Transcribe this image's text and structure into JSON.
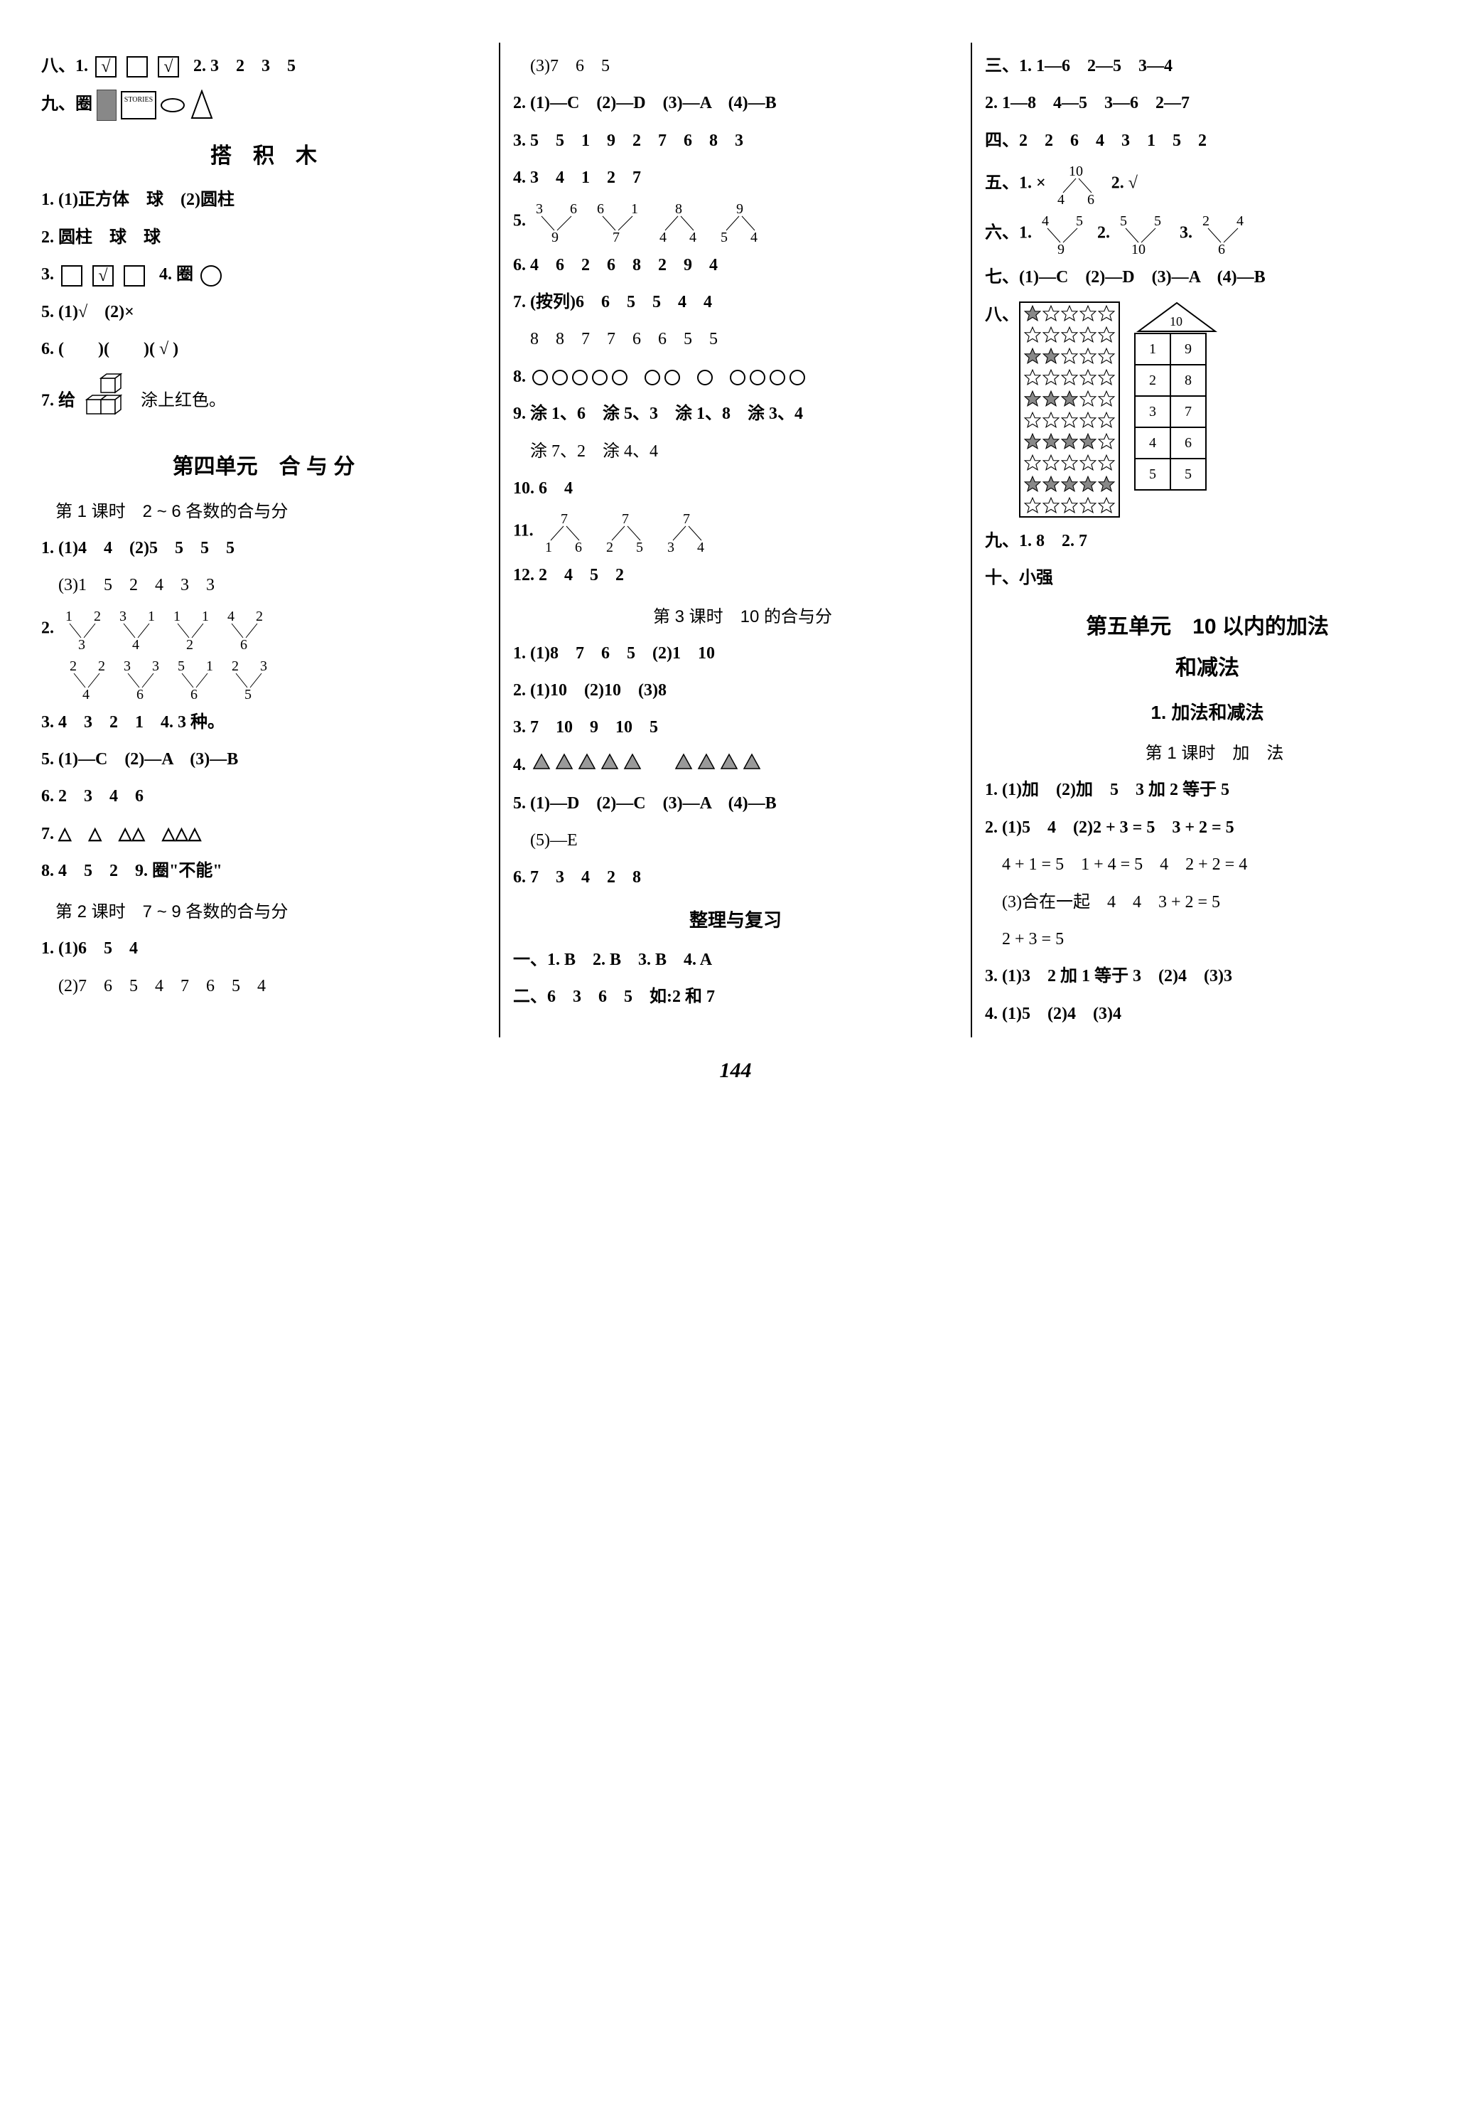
{
  "page_number": "144",
  "col1": {
    "l1_prefix": "八、1.",
    "l1_check": "√",
    "l1_suffix": "2. 3　2　3　5",
    "l2_prefix": "九、圈",
    "book_label": "STORIES",
    "unit_blocks": "搭　积　木",
    "l3": "1. (1)正方体　球　(2)圆柱",
    "l4": "2. 圆柱　球　球",
    "l5_prefix": "3.",
    "l5_mid": "4. 圈",
    "l6": "5. (1)√　(2)×",
    "l7": "6. (　　)(　　)( √ )",
    "l8_prefix": "7. 给",
    "l8_suffix": "涂上红色。",
    "unit4": "第四单元　合 与 分",
    "lesson41": "第 1 课时　2 ~ 6 各数的合与分",
    "l9": "1. (1)4　4　(2)5　5　5　5",
    "l10": "　(3)1　5　2　4　3　3",
    "l11_prefix": "2.",
    "v1": {
      "tl": "1",
      "tr": "2",
      "b": "3"
    },
    "v2": {
      "tl": "3",
      "tr": "1",
      "b": "4"
    },
    "v3": {
      "tl": "1",
      "tr": "1",
      "b": "2"
    },
    "v4": {
      "tl": "4",
      "tr": "2",
      "b": "6"
    },
    "v5": {
      "tl": "2",
      "tr": "2",
      "b": "4"
    },
    "v6": {
      "tl": "3",
      "tr": "3",
      "b": "6"
    },
    "v7": {
      "tl": "5",
      "tr": "1",
      "b": "6"
    },
    "v8": {
      "tl": "2",
      "tr": "3",
      "b": "5"
    },
    "l12": "3. 4　3　2　1　4. 3 种。",
    "l13": "5. (1)—C　(2)—A　(3)—B",
    "l14": "6. 2　3　4　6",
    "l15": "7. △　△　△△　△△△",
    "l16": "8. 4　5　2　9. 圈\"不能\"",
    "lesson42": "第 2 课时　7 ~ 9 各数的合与分",
    "l17": "1. (1)6　5　4",
    "l18": "　(2)7　6　5　4　7　6　5　4"
  },
  "col2": {
    "l1": "　(3)7　6　5",
    "l2": "2. (1)—C　(2)—D　(3)—A　(4)—B",
    "l3": "3. 5　5　1　9　2　7　6　8　3",
    "l4": "4. 3　4　1　2　7",
    "l5_prefix": "5.",
    "va": {
      "t": "3",
      "bl": "",
      "br": "9",
      "type": "down",
      "tl": "3",
      "tr": "6"
    },
    "vb": {
      "t": "6",
      "bl": "",
      "br": "7",
      "tl": "6",
      "tr": "1"
    },
    "vc": {
      "t": "8",
      "bl": "4",
      "br": "4",
      "tl": "",
      "tr": "8"
    },
    "vd": {
      "t": "9",
      "bl": "5",
      "br": "4",
      "tl": "",
      "tr": "9"
    },
    "d1": {
      "tl": "3",
      "tr": "6",
      "b": "9"
    },
    "d2": {
      "tl": "6",
      "tr": "1",
      "b": "7"
    },
    "d3": {
      "t": "8",
      "bl": "4",
      "br": "4"
    },
    "d4": {
      "t": "9",
      "bl": "5",
      "br": "4"
    },
    "l6": "6. 4　6　2　6　8　2　9　4",
    "l7": "7. (按列)6　6　5　5　4　4",
    "l8": "　8　8　7　7　6　6　5　5",
    "l9_prefix": "8. ",
    "circles": [
      5,
      2,
      1,
      4
    ],
    "l10": "9. 涂 1、6　涂 5、3　涂 1、8　涂 3、4",
    "l11": "　涂 7、2　涂 4、4",
    "l12": "10. 6　4",
    "l13_prefix": "11.",
    "e1": {
      "t": "7",
      "bl": "1",
      "br": "6"
    },
    "e2": {
      "t": "7",
      "bl": "2",
      "br": "5"
    },
    "e3": {
      "t": "7",
      "bl": "3",
      "br": "4"
    },
    "l14": "12. 2　4　5　2",
    "lesson43": "第 3 课时　10 的合与分",
    "l15": "1. (1)8　7　6　5　(2)1　10",
    "l16": "2. (1)10　(2)10　(3)8",
    "l17": "3. 7　10　9　10　5",
    "l18_prefix": "4. ",
    "tri_groups": [
      5,
      4
    ],
    "l19": "5. (1)—D　(2)—C　(3)—A　(4)—B",
    "l20": "　(5)—E",
    "l21": "6. 7　3　4　2　8",
    "review": "整理与复习",
    "l22": "一、1. B　2. B　3. B　4. A",
    "l23": "二、6　3　6　5　如:2 和 7"
  },
  "col3": {
    "l1": "三、1. 1—6　2—5　3—4",
    "l2": "2. 1—8　4—5　3—6　2—7",
    "l3": "四、2　2　6　4　3　1　5　2",
    "l4_prefix": "五、1. ×",
    "l4_v": {
      "t": "10",
      "bl": "4",
      "br": "6"
    },
    "l4_suffix": "2. √",
    "l5_prefix": "六、1.",
    "f1": {
      "tl": "4",
      "tr": "5",
      "b": "9"
    },
    "l5_mid1": "2.",
    "f2": {
      "tl": "5",
      "tr": "5",
      "b": "10"
    },
    "l5_mid2": "3.",
    "f3": {
      "tl": "2",
      "tr": "4",
      "b": "6"
    },
    "l6": "七、(1)—C　(2)—D　(3)—A　(4)—B",
    "l7_prefix": "八、",
    "star_pattern": [
      [
        1,
        0,
        0,
        0,
        0
      ],
      [
        0,
        0,
        0,
        0,
        0
      ],
      [
        1,
        1,
        0,
        0,
        0
      ],
      [
        0,
        0,
        0,
        0,
        0
      ],
      [
        1,
        1,
        1,
        0,
        0
      ],
      [
        0,
        0,
        0,
        0,
        0
      ],
      [
        1,
        1,
        1,
        1,
        0
      ],
      [
        0,
        0,
        0,
        0,
        0
      ],
      [
        1,
        1,
        1,
        1,
        1
      ],
      [
        0,
        0,
        0,
        0,
        0
      ]
    ],
    "house_top": "10",
    "house_rows": [
      [
        "1",
        "9"
      ],
      [
        "2",
        "8"
      ],
      [
        "3",
        "7"
      ],
      [
        "4",
        "6"
      ],
      [
        "5",
        "5"
      ]
    ],
    "l8": "九、1. 8　2. 7",
    "l9": "十、小强",
    "unit5a": "第五单元　10 以内的加法",
    "unit5b": "和减法",
    "sub1": "1. 加法和减法",
    "lesson51": "第 1 课时　加　法",
    "l10": "1. (1)加　(2)加　5　3 加 2 等于 5",
    "l11": "2. (1)5　4　(2)2 + 3 = 5　3 + 2 = 5",
    "l12": "　4 + 1 = 5　1 + 4 = 5　4　2 + 2 = 4",
    "l13": "　(3)合在一起　4　4　3 + 2 = 5",
    "l14": "　2 + 3 = 5",
    "l15": "3. (1)3　2 加 1 等于 3　(2)4　(3)3",
    "l16": "4. (1)5　(2)4　(3)4"
  }
}
